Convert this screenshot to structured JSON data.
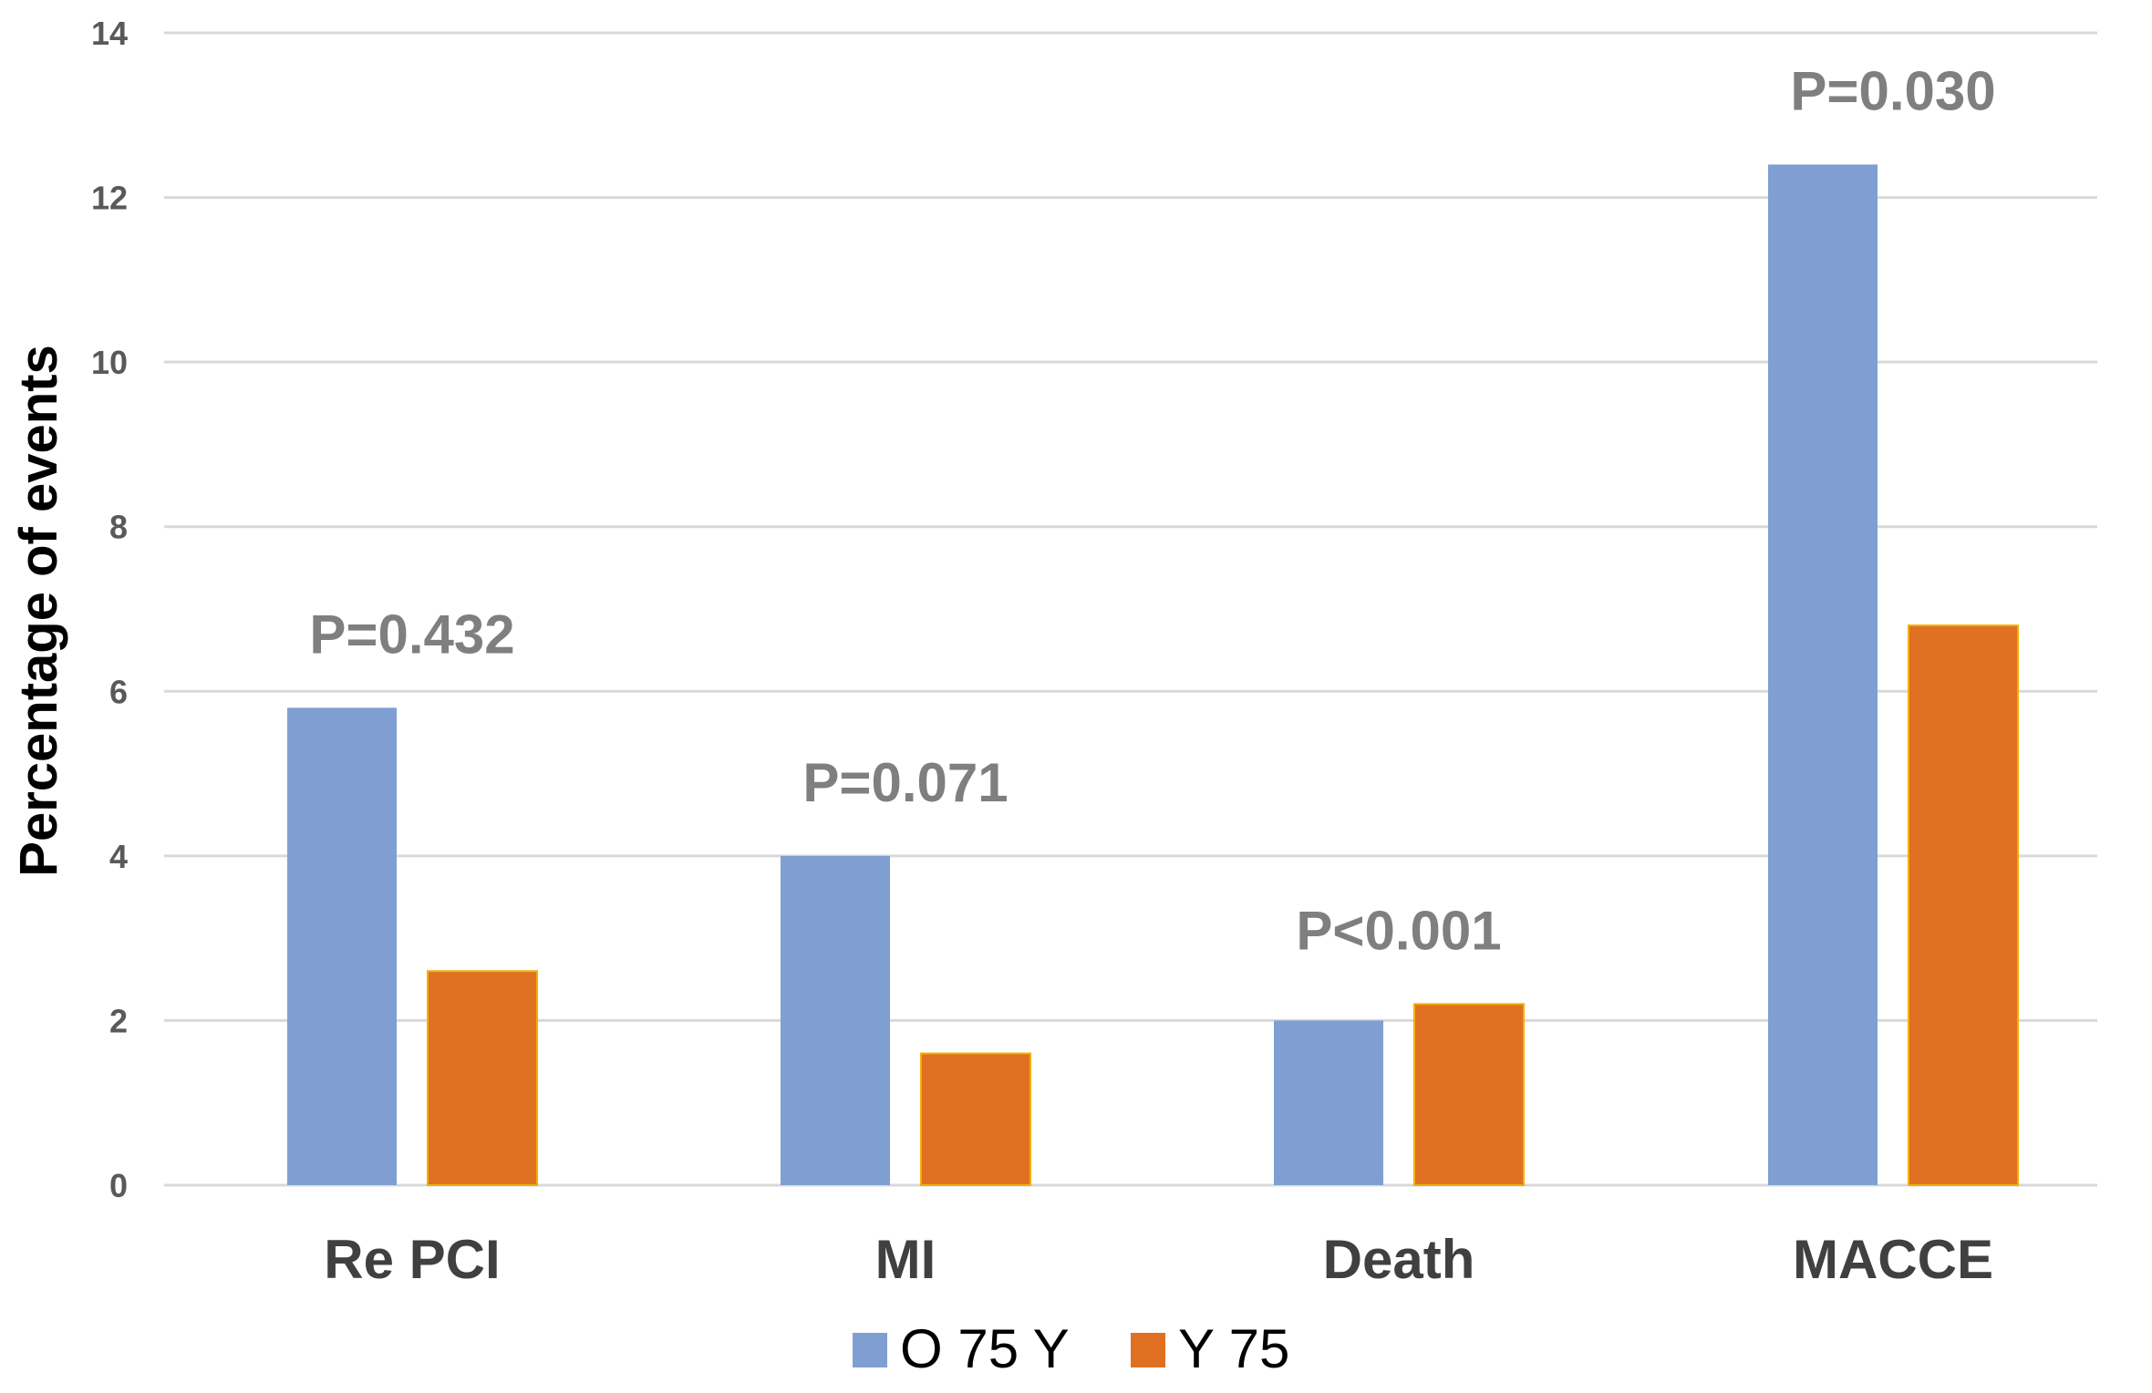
{
  "chart_data": {
    "type": "bar",
    "title": "",
    "xlabel": "",
    "ylabel": "Percentage of events",
    "ylim": [
      0,
      14
    ],
    "yticks": [
      0,
      2,
      4,
      6,
      8,
      10,
      12,
      14
    ],
    "grid": true,
    "legend_position": "bottom",
    "categories": [
      "Re PCI",
      "MI",
      "Death",
      "MACCE"
    ],
    "series": [
      {
        "name": "O 75 Y",
        "color": "#7f9fd3",
        "values": [
          5.8,
          4.0,
          2.0,
          12.4
        ]
      },
      {
        "name": "Y 75",
        "color": "#e07022",
        "values": [
          2.6,
          1.6,
          2.2,
          6.8
        ]
      }
    ],
    "annotations": [
      "P=0.432",
      "P=0.071",
      "P<0.001",
      "P=0.030"
    ]
  }
}
